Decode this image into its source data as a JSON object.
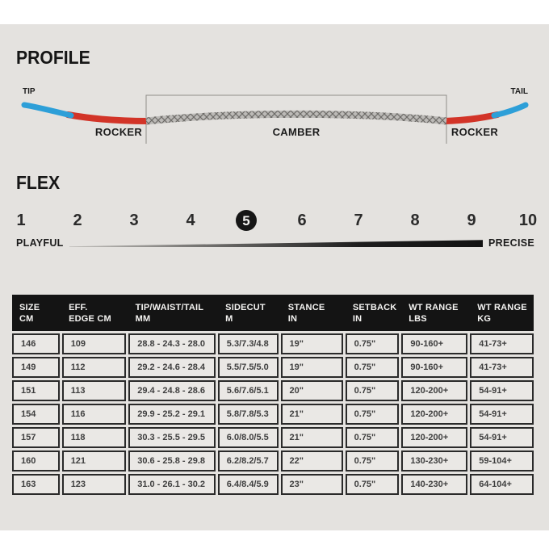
{
  "profile": {
    "title": "PROFILE",
    "tip_label": "TIP",
    "tail_label": "TAIL",
    "rocker_left_label": "ROCKER",
    "camber_label": "CAMBER",
    "rocker_right_label": "ROCKER",
    "colors": {
      "tip_tail": "#2d9fd8",
      "rocker": "#d23428",
      "camber": "#b9b7b4",
      "outline": "#8f8d8a"
    }
  },
  "flex": {
    "title": "FLEX",
    "scale": [
      "1",
      "2",
      "3",
      "4",
      "5",
      "6",
      "7",
      "8",
      "9",
      "10"
    ],
    "selected": "5",
    "left_label": "PLAYFUL",
    "right_label": "PRECISE"
  },
  "table": {
    "headers": [
      [
        "SIZE",
        "CM"
      ],
      [
        "EFF.",
        "EDGE CM"
      ],
      [
        "TIP/WAIST/TAIL",
        "MM"
      ],
      [
        "SIDECUT",
        "M"
      ],
      [
        "STANCE",
        "IN"
      ],
      [
        "SETBACK",
        "IN"
      ],
      [
        "WT RANGE",
        "LBS"
      ],
      [
        "WT RANGE",
        "KG"
      ]
    ],
    "rows": [
      [
        "146",
        "109",
        "28.8 - 24.3 - 28.0",
        "5.3/7.3/4.8",
        "19\"",
        "0.75\"",
        "90-160+",
        "41-73+"
      ],
      [
        "149",
        "112",
        "29.2 - 24.6 - 28.4",
        "5.5/7.5/5.0",
        "19\"",
        "0.75\"",
        "90-160+",
        "41-73+"
      ],
      [
        "151",
        "113",
        "29.4 - 24.8 - 28.6",
        "5.6/7.6/5.1",
        "20\"",
        "0.75\"",
        "120-200+",
        "54-91+"
      ],
      [
        "154",
        "116",
        "29.9 - 25.2 - 29.1",
        "5.8/7.8/5.3",
        "21\"",
        "0.75\"",
        "120-200+",
        "54-91+"
      ],
      [
        "157",
        "118",
        "30.3 - 25.5 - 29.5",
        "6.0/8.0/5.5",
        "21\"",
        "0.75\"",
        "120-200+",
        "54-91+"
      ],
      [
        "160",
        "121",
        "30.6 - 25.8 - 29.8",
        "6.2/8.2/5.7",
        "22\"",
        "0.75\"",
        "130-230+",
        "59-104+"
      ],
      [
        "163",
        "123",
        "31.0 - 26.1 - 30.2",
        "6.4/8.4/5.9",
        "23\"",
        "0.75\"",
        "140-230+",
        "64-104+"
      ]
    ]
  }
}
